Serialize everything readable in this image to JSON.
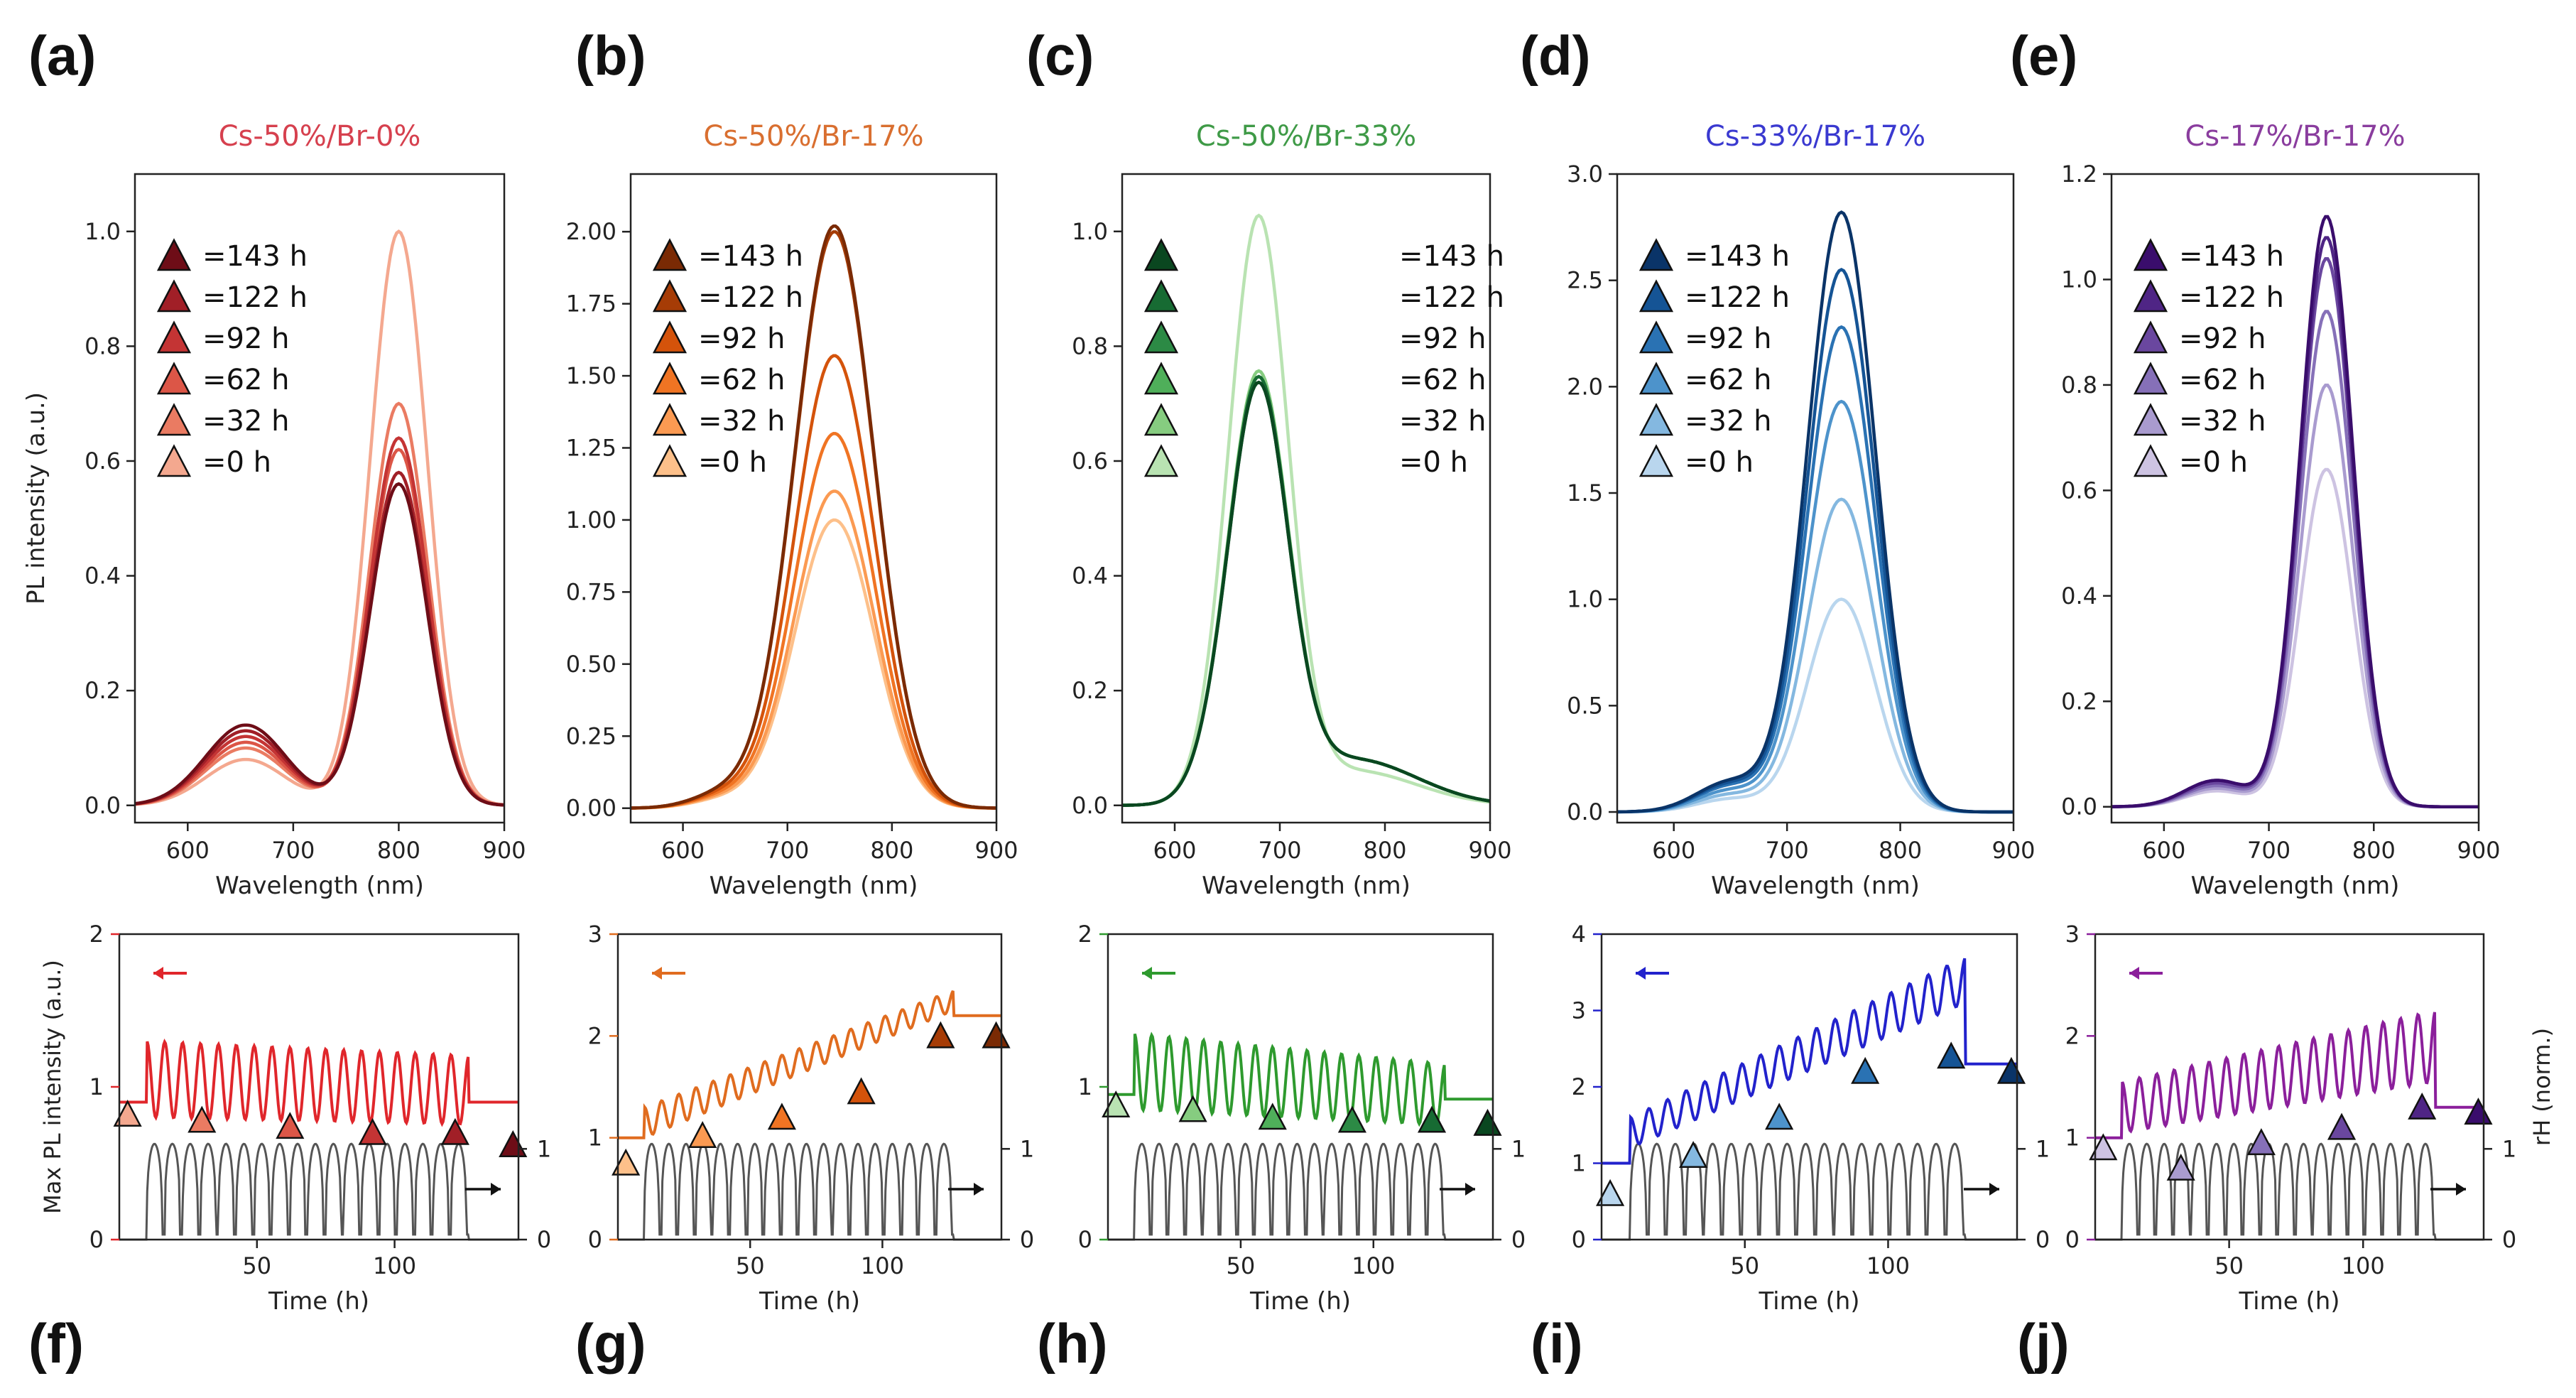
{
  "figure": {
    "colors": {
      "text": "#222222",
      "axis": "#222222",
      "rh": "#555555"
    }
  },
  "chart_data": [
    {
      "id": "a",
      "letter": "(a)",
      "type": "line",
      "title": "Cs-50%/Br-0%",
      "title_color": "#d6404e",
      "xlabel": "Wavelength (nm)",
      "ylabel": "PL intensity (a.u.)",
      "xlim": [
        550,
        900
      ],
      "ylim": [
        -0.03,
        1.1
      ],
      "xticks": [
        600,
        700,
        800,
        900
      ],
      "yticks": [
        0,
        0.2,
        0.4,
        0.6,
        0.8,
        1.0
      ],
      "ytick_labels": [
        "0.0",
        "0.2",
        "0.4",
        "0.6",
        "0.8",
        "1.0"
      ],
      "peak_nm": 800,
      "peak_width": 27,
      "shoulder_nm": 655,
      "shoulder_width": 38,
      "legend_labels": [
        "=143 h",
        "=122 h",
        "=92 h",
        "=62 h",
        "=32 h",
        "=0 h"
      ],
      "legend_position": "top-left",
      "series": [
        {
          "name": "=0 h",
          "peak": 1.0,
          "shoulder": 0.08,
          "color": "#f4a88f"
        },
        {
          "name": "=32 h",
          "peak": 0.7,
          "shoulder": 0.1,
          "color": "#ea7b62"
        },
        {
          "name": "=62 h",
          "peak": 0.62,
          "shoulder": 0.11,
          "color": "#dc5647"
        },
        {
          "name": "=92 h",
          "peak": 0.64,
          "shoulder": 0.12,
          "color": "#c43434"
        },
        {
          "name": "=122 h",
          "peak": 0.58,
          "shoulder": 0.13,
          "color": "#a11f27"
        },
        {
          "name": "=143 h",
          "peak": 0.56,
          "shoulder": 0.14,
          "color": "#6e0d17"
        }
      ]
    },
    {
      "id": "b",
      "letter": "(b)",
      "type": "line",
      "title": "Cs-50%/Br-17%",
      "title_color": "#d96f30",
      "xlabel": "Wavelength (nm)",
      "ylabel": "",
      "xlim": [
        550,
        900
      ],
      "ylim": [
        -0.05,
        2.2
      ],
      "xticks": [
        600,
        700,
        800,
        900
      ],
      "yticks": [
        0,
        0.25,
        0.5,
        0.75,
        1.0,
        1.25,
        1.5,
        1.75,
        2.0
      ],
      "ytick_labels": [
        "0.00",
        "0.25",
        "0.50",
        "0.75",
        "1.00",
        "1.25",
        "1.50",
        "1.75",
        "2.00"
      ],
      "peak_nm": 745,
      "peak_width": 38,
      "shoulder_nm": 640,
      "shoulder_width": 30,
      "legend_labels": [
        "=143 h",
        "=122 h",
        "=92 h",
        "=62 h",
        "=32 h",
        "=0 h"
      ],
      "legend_position": "top-left",
      "series": [
        {
          "name": "=0 h",
          "peak": 1.0,
          "shoulder": 0.03,
          "color": "#fdc08a"
        },
        {
          "name": "=32 h",
          "peak": 1.1,
          "shoulder": 0.035,
          "color": "#fb9a52"
        },
        {
          "name": "=62 h",
          "peak": 1.3,
          "shoulder": 0.04,
          "color": "#f07423"
        },
        {
          "name": "=92 h",
          "peak": 1.57,
          "shoulder": 0.045,
          "color": "#d4530b"
        },
        {
          "name": "=122 h",
          "peak": 2.0,
          "shoulder": 0.05,
          "color": "#a63c06"
        },
        {
          "name": "=143 h",
          "peak": 2.02,
          "shoulder": 0.05,
          "color": "#7a2a04"
        }
      ]
    },
    {
      "id": "c",
      "letter": "(c)",
      "type": "line",
      "title": "Cs-50%/Br-33%",
      "title_color": "#3f9a47",
      "xlabel": "Wavelength (nm)",
      "ylabel": "",
      "xlim": [
        550,
        900
      ],
      "ylim": [
        -0.03,
        1.1
      ],
      "xticks": [
        600,
        700,
        800,
        900
      ],
      "yticks": [
        0,
        0.2,
        0.4,
        0.6,
        0.8,
        1.0
      ],
      "ytick_labels": [
        "0.0",
        "0.2",
        "0.4",
        "0.6",
        "0.8",
        "1.0"
      ],
      "peak_nm": 680,
      "peak_width": 28,
      "shoulder_nm": 770,
      "shoulder_width": 60,
      "legend_labels": [
        "=143 h",
        "=122 h",
        "=92 h",
        "=62 h",
        "=32 h",
        "=0 h"
      ],
      "legend_position": "top-left",
      "series": [
        {
          "name": "=0 h",
          "peak": 1.0,
          "shoulder": 0.06,
          "color": "#b9e3b2"
        },
        {
          "name": "=32 h",
          "peak": 0.72,
          "shoulder": 0.08,
          "color": "#86cc80"
        },
        {
          "name": "=62 h",
          "peak": 0.71,
          "shoulder": 0.08,
          "color": "#4faf5a"
        },
        {
          "name": "=92 h",
          "peak": 0.7,
          "shoulder": 0.08,
          "color": "#2c8a45"
        },
        {
          "name": "=122 h",
          "peak": 0.71,
          "shoulder": 0.08,
          "color": "#176b33"
        },
        {
          "name": "=143 h",
          "peak": 0.7,
          "shoulder": 0.08,
          "color": "#0a4720"
        }
      ]
    },
    {
      "id": "d",
      "letter": "(d)",
      "type": "line",
      "title": "Cs-33%/Br-17%",
      "title_color": "#3a39d0",
      "xlabel": "Wavelength (nm)",
      "ylabel": "",
      "xlim": [
        550,
        900
      ],
      "ylim": [
        -0.05,
        3.0
      ],
      "xticks": [
        600,
        700,
        800,
        900
      ],
      "yticks": [
        0,
        0.5,
        1.0,
        1.5,
        2.0,
        2.5,
        3.0
      ],
      "ytick_labels": [
        "0.0",
        "0.5",
        "1.0",
        "1.5",
        "2.0",
        "2.5",
        "3.0"
      ],
      "peak_nm": 748,
      "peak_width": 30,
      "shoulder_nm": 650,
      "shoulder_width": 30,
      "legend_labels": [
        "=143 h",
        "=122 h",
        "=92 h",
        "=62 h",
        "=32 h",
        "=0 h"
      ],
      "legend_position": "top-left",
      "series": [
        {
          "name": "=0 h",
          "peak": 1.0,
          "shoulder": 0.06,
          "color": "#b9d6ee"
        },
        {
          "name": "=32 h",
          "peak": 1.47,
          "shoulder": 0.08,
          "color": "#84b8e0"
        },
        {
          "name": "=62 h",
          "peak": 1.93,
          "shoulder": 0.1,
          "color": "#4d93cb"
        },
        {
          "name": "=92 h",
          "peak": 2.28,
          "shoulder": 0.12,
          "color": "#2a72b3"
        },
        {
          "name": "=122 h",
          "peak": 2.55,
          "shoulder": 0.13,
          "color": "#155495"
        },
        {
          "name": "=143 h",
          "peak": 2.82,
          "shoulder": 0.14,
          "color": "#0a3468"
        }
      ]
    },
    {
      "id": "e",
      "letter": "(e)",
      "type": "line",
      "title": "Cs-17%/Br-17%",
      "title_color": "#8a3d9e",
      "xlabel": "Wavelength (nm)",
      "ylabel": "",
      "xlim": [
        550,
        900
      ],
      "ylim": [
        -0.03,
        1.2
      ],
      "xticks": [
        600,
        700,
        800,
        900
      ],
      "yticks": [
        0,
        0.2,
        0.4,
        0.6,
        0.8,
        1.0,
        1.2
      ],
      "ytick_labels": [
        "0.0",
        "0.2",
        "0.4",
        "0.6",
        "0.8",
        "1.0",
        "1.2"
      ],
      "peak_nm": 755,
      "peak_width": 25,
      "shoulder_nm": 650,
      "shoulder_width": 30,
      "legend_labels": [
        "=143 h",
        "=122 h",
        "=92 h",
        "=62 h",
        "=32 h",
        "=0 h"
      ],
      "legend_position": "top-left",
      "series": [
        {
          "name": "=0 h",
          "peak": 0.64,
          "shoulder": 0.03,
          "color": "#cdc3e2"
        },
        {
          "name": "=32 h",
          "peak": 0.8,
          "shoulder": 0.035,
          "color": "#a99bcf"
        },
        {
          "name": "=62 h",
          "peak": 0.94,
          "shoulder": 0.04,
          "color": "#8670b8"
        },
        {
          "name": "=92 h",
          "peak": 1.04,
          "shoulder": 0.045,
          "color": "#6a479f"
        },
        {
          "name": "=122 h",
          "peak": 1.08,
          "shoulder": 0.05,
          "color": "#4f2585"
        },
        {
          "name": "=143 h",
          "peak": 1.12,
          "shoulder": 0.05,
          "color": "#3a0d6c"
        }
      ]
    },
    {
      "id": "f",
      "letter": "(f)",
      "type": "line",
      "xlabel": "Time (h)",
      "ylabel": "Max PL intensity (a.u.)",
      "y2label": "",
      "xlim": [
        0,
        145
      ],
      "ylim": [
        0,
        2
      ],
      "yticks": [
        0,
        1,
        2
      ],
      "y2ticks": [
        0,
        1
      ],
      "xticks": [
        50,
        100
      ],
      "color": "#e0262b",
      "tick_color": "#e0262b",
      "series": {
        "name": "Max PL intensity",
        "start": 0.9,
        "amp_start": 0.5,
        "amp_end": 0.45,
        "base_start": 1.05,
        "base_end": 0.98,
        "end": 0.9
      },
      "markers": [
        {
          "t": 3,
          "v": 0.82,
          "color": "#f4a88f"
        },
        {
          "t": 30,
          "v": 0.78,
          "color": "#ea7b62"
        },
        {
          "t": 62,
          "v": 0.74,
          "color": "#dc5647"
        },
        {
          "t": 92,
          "v": 0.7,
          "color": "#c43434"
        },
        {
          "t": 122,
          "v": 0.7,
          "color": "#a11f27"
        },
        {
          "t": 143,
          "v": 0.62,
          "color": "#6e0d17"
        }
      ]
    },
    {
      "id": "g",
      "letter": "(g)",
      "type": "line",
      "xlabel": "Time (h)",
      "ylabel": "",
      "y2label": "",
      "xlim": [
        0,
        145
      ],
      "ylim": [
        0,
        3
      ],
      "yticks": [
        0,
        1,
        2,
        3
      ],
      "y2ticks": [
        0,
        1
      ],
      "xticks": [
        50,
        100
      ],
      "color": "#e06c1f",
      "tick_color": "#e06c1f",
      "series": {
        "name": "Max PL intensity",
        "start": 1.0,
        "amp_start": 0.3,
        "amp_end": 0.2,
        "base_start": 1.15,
        "base_end": 2.35,
        "end": 2.2
      },
      "markers": [
        {
          "t": 3,
          "v": 0.75,
          "color": "#fdc08a"
        },
        {
          "t": 32,
          "v": 1.02,
          "color": "#fb9a52"
        },
        {
          "t": 62,
          "v": 1.2,
          "color": "#f07423"
        },
        {
          "t": 92,
          "v": 1.45,
          "color": "#d4530b"
        },
        {
          "t": 122,
          "v": 2.0,
          "color": "#a63c06"
        },
        {
          "t": 143,
          "v": 2.0,
          "color": "#7a2a04"
        }
      ]
    },
    {
      "id": "h",
      "letter": "(h)",
      "type": "line",
      "xlabel": "Time (h)",
      "ylabel": "",
      "y2label": "",
      "xlim": [
        0,
        145
      ],
      "ylim": [
        0,
        2
      ],
      "yticks": [
        0,
        1,
        2
      ],
      "y2ticks": [
        0,
        1
      ],
      "xticks": [
        50,
        100
      ],
      "color": "#2e9a2e",
      "tick_color": "#2e9a2e",
      "series": {
        "name": "Max PL intensity",
        "start": 0.95,
        "amp_start": 0.5,
        "amp_end": 0.4,
        "base_start": 1.1,
        "base_end": 0.95,
        "end": 0.92
      },
      "markers": [
        {
          "t": 3,
          "v": 0.88,
          "color": "#b9e3b2"
        },
        {
          "t": 32,
          "v": 0.85,
          "color": "#86cc80"
        },
        {
          "t": 62,
          "v": 0.8,
          "color": "#4faf5a"
        },
        {
          "t": 92,
          "v": 0.78,
          "color": "#2c8a45"
        },
        {
          "t": 122,
          "v": 0.78,
          "color": "#176b33"
        },
        {
          "t": 143,
          "v": 0.76,
          "color": "#0a4720"
        }
      ]
    },
    {
      "id": "i",
      "letter": "(i)",
      "type": "line",
      "xlabel": "Time (h)",
      "ylabel": "",
      "y2label": "",
      "xlim": [
        0,
        145
      ],
      "ylim": [
        0,
        4
      ],
      "yticks": [
        0,
        1,
        2,
        3,
        4
      ],
      "y2ticks": [
        0,
        1
      ],
      "xticks": [
        50,
        100
      ],
      "color": "#2222cc",
      "tick_color": "#2222cc",
      "series": {
        "name": "Max PL intensity",
        "start": 1.0,
        "amp_start": 0.4,
        "amp_end": 0.6,
        "base_start": 1.4,
        "base_end": 3.4,
        "end": 2.3
      },
      "markers": [
        {
          "t": 3,
          "v": 0.6,
          "color": "#b9d6ee"
        },
        {
          "t": 32,
          "v": 1.1,
          "color": "#84b8e0"
        },
        {
          "t": 62,
          "v": 1.6,
          "color": "#4d93cb"
        },
        {
          "t": 92,
          "v": 2.2,
          "color": "#2a72b3"
        },
        {
          "t": 122,
          "v": 2.4,
          "color": "#155495"
        },
        {
          "t": 143,
          "v": 2.2,
          "color": "#0a3468"
        }
      ]
    },
    {
      "id": "j",
      "letter": "(j)",
      "type": "line",
      "xlabel": "Time (h)",
      "ylabel": "",
      "y2label": "rH (norm.)",
      "xlim": [
        0,
        145
      ],
      "ylim": [
        0,
        3
      ],
      "yticks": [
        0,
        1,
        2,
        3
      ],
      "y2ticks": [
        0,
        1
      ],
      "xticks": [
        50,
        100
      ],
      "color": "#8b1f9b",
      "tick_color": "#8b1f9b",
      "series": {
        "name": "Max PL intensity",
        "start": 1.0,
        "amp_start": 0.5,
        "amp_end": 0.7,
        "base_start": 1.3,
        "base_end": 1.9,
        "end": 1.3
      },
      "markers": [
        {
          "t": 3,
          "v": 0.9,
          "color": "#cdc3e2"
        },
        {
          "t": 32,
          "v": 0.7,
          "color": "#a99bcf"
        },
        {
          "t": 62,
          "v": 0.95,
          "color": "#8670b8"
        },
        {
          "t": 92,
          "v": 1.1,
          "color": "#6a479f"
        },
        {
          "t": 122,
          "v": 1.3,
          "color": "#4f2585"
        },
        {
          "t": 143,
          "v": 1.25,
          "color": "#3a0d6c"
        }
      ]
    }
  ]
}
